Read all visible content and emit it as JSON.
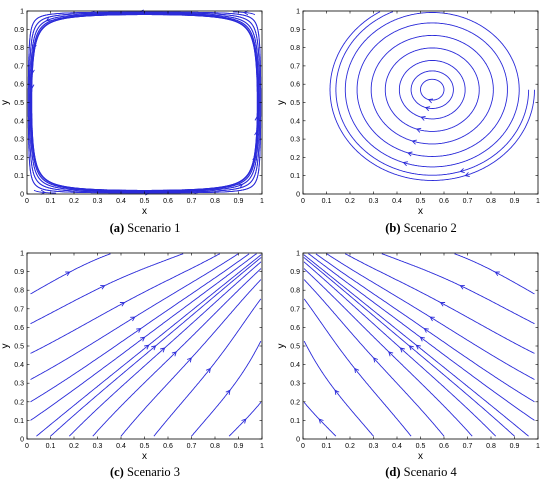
{
  "figure": {
    "panels": [
      {
        "id": "a",
        "letter": "(a)",
        "caption": "Scenario 1",
        "field": "saddle"
      },
      {
        "id": "b",
        "letter": "(b)",
        "caption": "Scenario 2",
        "field": "vortex"
      },
      {
        "id": "c",
        "letter": "(c)",
        "caption": "Scenario 3",
        "field": "corner_up"
      },
      {
        "id": "d",
        "letter": "(d)",
        "caption": "Scenario 4",
        "field": "corner_down"
      }
    ]
  },
  "chart_data": [
    {
      "type": "streamline",
      "xlabel": "x",
      "ylabel": "y",
      "xlim": [
        0,
        1
      ],
      "ylim": [
        0,
        1
      ],
      "xticks": [
        "0",
        "0.1",
        "0.2",
        "0.3",
        "0.4",
        "0.5",
        "0.6",
        "0.7",
        "0.8",
        "0.9",
        "1"
      ],
      "yticks": [
        "0",
        "0.1",
        "0.2",
        "0.3",
        "0.4",
        "0.5",
        "0.6",
        "0.7",
        "0.8",
        "0.9",
        "1"
      ],
      "critical_point": {
        "kind": "saddle",
        "x": 0.5,
        "y": 0.5
      },
      "color": "#2b2bd9"
    },
    {
      "type": "streamline",
      "xlabel": "x",
      "ylabel": "y",
      "xlim": [
        0,
        1
      ],
      "ylim": [
        0,
        1
      ],
      "xticks": [
        "0",
        "0.1",
        "0.2",
        "0.3",
        "0.4",
        "0.5",
        "0.6",
        "0.7",
        "0.8",
        "0.9",
        "1"
      ],
      "yticks": [
        "0",
        "0.1",
        "0.2",
        "0.3",
        "0.4",
        "0.5",
        "0.6",
        "0.7",
        "0.8",
        "0.9",
        "1"
      ],
      "critical_point": {
        "kind": "center",
        "x": 0.55,
        "y": 0.57
      },
      "color": "#2b2bd9"
    },
    {
      "type": "streamline",
      "xlabel": "x",
      "ylabel": "y",
      "xlim": [
        0,
        1
      ],
      "ylim": [
        0,
        1
      ],
      "xticks": [
        "0",
        "0.1",
        "0.2",
        "0.3",
        "0.4",
        "0.5",
        "0.6",
        "0.7",
        "0.8",
        "0.9",
        "1"
      ],
      "yticks": [
        "0",
        "0.1",
        "0.2",
        "0.3",
        "0.4",
        "0.5",
        "0.6",
        "0.7",
        "0.8",
        "0.9",
        "1"
      ],
      "flow": "from (0,0) toward (1,1)",
      "color": "#2b2bd9"
    },
    {
      "type": "streamline",
      "xlabel": "x",
      "ylabel": "y",
      "xlim": [
        0,
        1
      ],
      "ylim": [
        0,
        1
      ],
      "xticks": [
        "0",
        "0.1",
        "0.2",
        "0.3",
        "0.4",
        "0.5",
        "0.6",
        "0.7",
        "0.8",
        "0.9",
        "1"
      ],
      "yticks": [
        "0",
        "0.1",
        "0.2",
        "0.3",
        "0.4",
        "0.5",
        "0.6",
        "0.7",
        "0.8",
        "0.9",
        "1"
      ],
      "flow": "from (1,0) toward (0,1)",
      "color": "#2b2bd9"
    }
  ]
}
